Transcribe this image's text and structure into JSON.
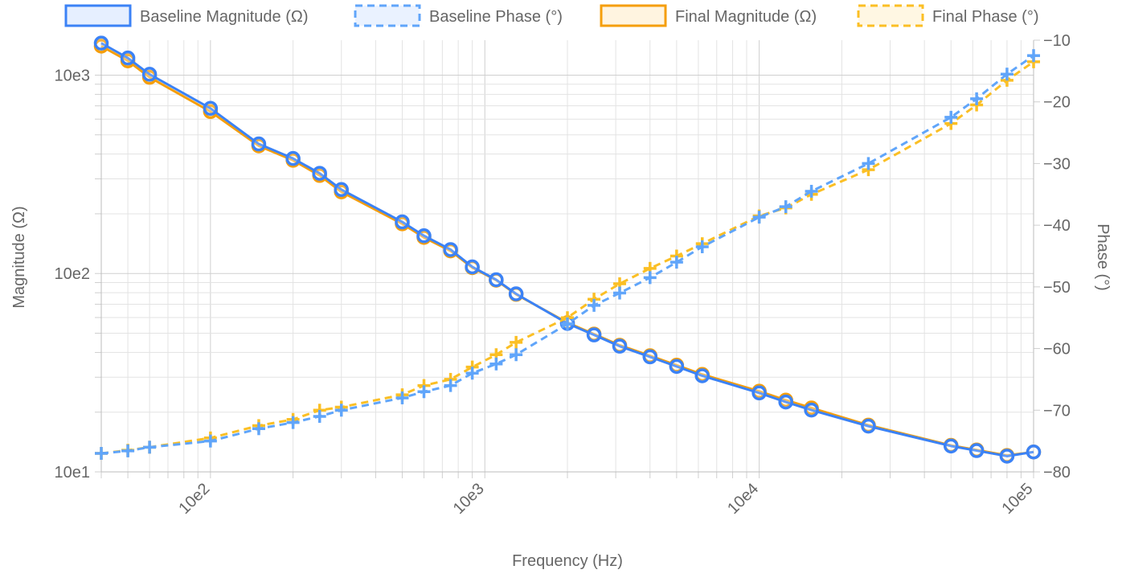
{
  "chart_data": {
    "type": "line",
    "title": "",
    "xlabel": "Frequency (Hz)",
    "ylabel": "Magnitude (Ω)",
    "y2label": "Phase (°)",
    "x_scale": "log",
    "y_scale": "log",
    "xlim": [
      40,
      100000
    ],
    "ylim": [
      10,
      1500
    ],
    "y2lim": [
      -80,
      -10
    ],
    "x_ticks": [
      {
        "value": 100,
        "label": "10e2"
      },
      {
        "value": 1000,
        "label": "10e3"
      },
      {
        "value": 10000,
        "label": "10e4"
      },
      {
        "value": 100000,
        "label": "10e5"
      }
    ],
    "y_ticks": [
      {
        "value": 10,
        "label": "10e1"
      },
      {
        "value": 100,
        "label": "10e2"
      },
      {
        "value": 1000,
        "label": "10e3"
      }
    ],
    "y2_ticks": [
      {
        "value": -80,
        "label": "−80"
      },
      {
        "value": -70,
        "label": "−70"
      },
      {
        "value": -60,
        "label": "−60"
      },
      {
        "value": -50,
        "label": "−50"
      },
      {
        "value": -40,
        "label": "−40"
      },
      {
        "value": -30,
        "label": "−30"
      },
      {
        "value": -20,
        "label": "−20"
      },
      {
        "value": -10,
        "label": "−10"
      }
    ],
    "grid": true,
    "legend": "top",
    "x": [
      40,
      50,
      60,
      100,
      150,
      200,
      250,
      300,
      500,
      600,
      750,
      900,
      1100,
      1300,
      2000,
      2500,
      3100,
      4000,
      5000,
      6200,
      10000,
      12500,
      15500,
      25000,
      50000,
      62000,
      80000,
      100000
    ],
    "series": [
      {
        "name": "Baseline Magnitude (Ω)",
        "axis": "left",
        "color": "#3b82f6",
        "style": "solid",
        "marker": "circle",
        "values": [
          1450,
          1220,
          1010,
          680,
          450,
          380,
          320,
          265,
          182,
          155,
          132,
          108,
          93,
          79,
          56,
          49,
          43,
          38,
          34,
          30.5,
          25,
          22.5,
          20.5,
          17,
          13.5,
          12.8,
          12,
          12.6
        ]
      },
      {
        "name": "Baseline Phase (°)",
        "axis": "right",
        "color": "#60a5fa",
        "style": "dashed",
        "marker": "cross",
        "values": [
          -77,
          -76.6,
          -76,
          -75,
          -73,
          -72,
          -71,
          -70,
          -68,
          -67,
          -66,
          -64,
          -62.5,
          -61,
          -56,
          -53,
          -51,
          -48.5,
          -46,
          -43.5,
          -38.7,
          -37,
          -34.5,
          -30,
          -22.5,
          -19.5,
          -15.5,
          -12.5
        ]
      },
      {
        "name": "Final Magnitude (Ω)",
        "axis": "left",
        "color": "#f59e0b",
        "style": "solid",
        "marker": "circle",
        "values": [
          1400,
          1180,
          975,
          655,
          440,
          372,
          312,
          258,
          178,
          152,
          130,
          107,
          92.5,
          78.5,
          56.5,
          49.5,
          43.5,
          38.5,
          34.5,
          31,
          25.5,
          23,
          21,
          17.2,
          13.6,
          12.9,
          12.1,
          12.6
        ]
      },
      {
        "name": "Final Phase (°)",
        "axis": "right",
        "color": "#fbbf24",
        "style": "dashed",
        "marker": "cross",
        "values": [
          -77,
          -76.5,
          -76,
          -74.5,
          -72.5,
          -71.5,
          -70,
          -69.5,
          -67.5,
          -66,
          -65,
          -63,
          -61,
          -59,
          -55,
          -52,
          -49.5,
          -47,
          -45,
          -43,
          -38.5,
          -37.2,
          -35,
          -31,
          -23.5,
          -20.5,
          -16.5,
          -13.5
        ]
      }
    ]
  }
}
